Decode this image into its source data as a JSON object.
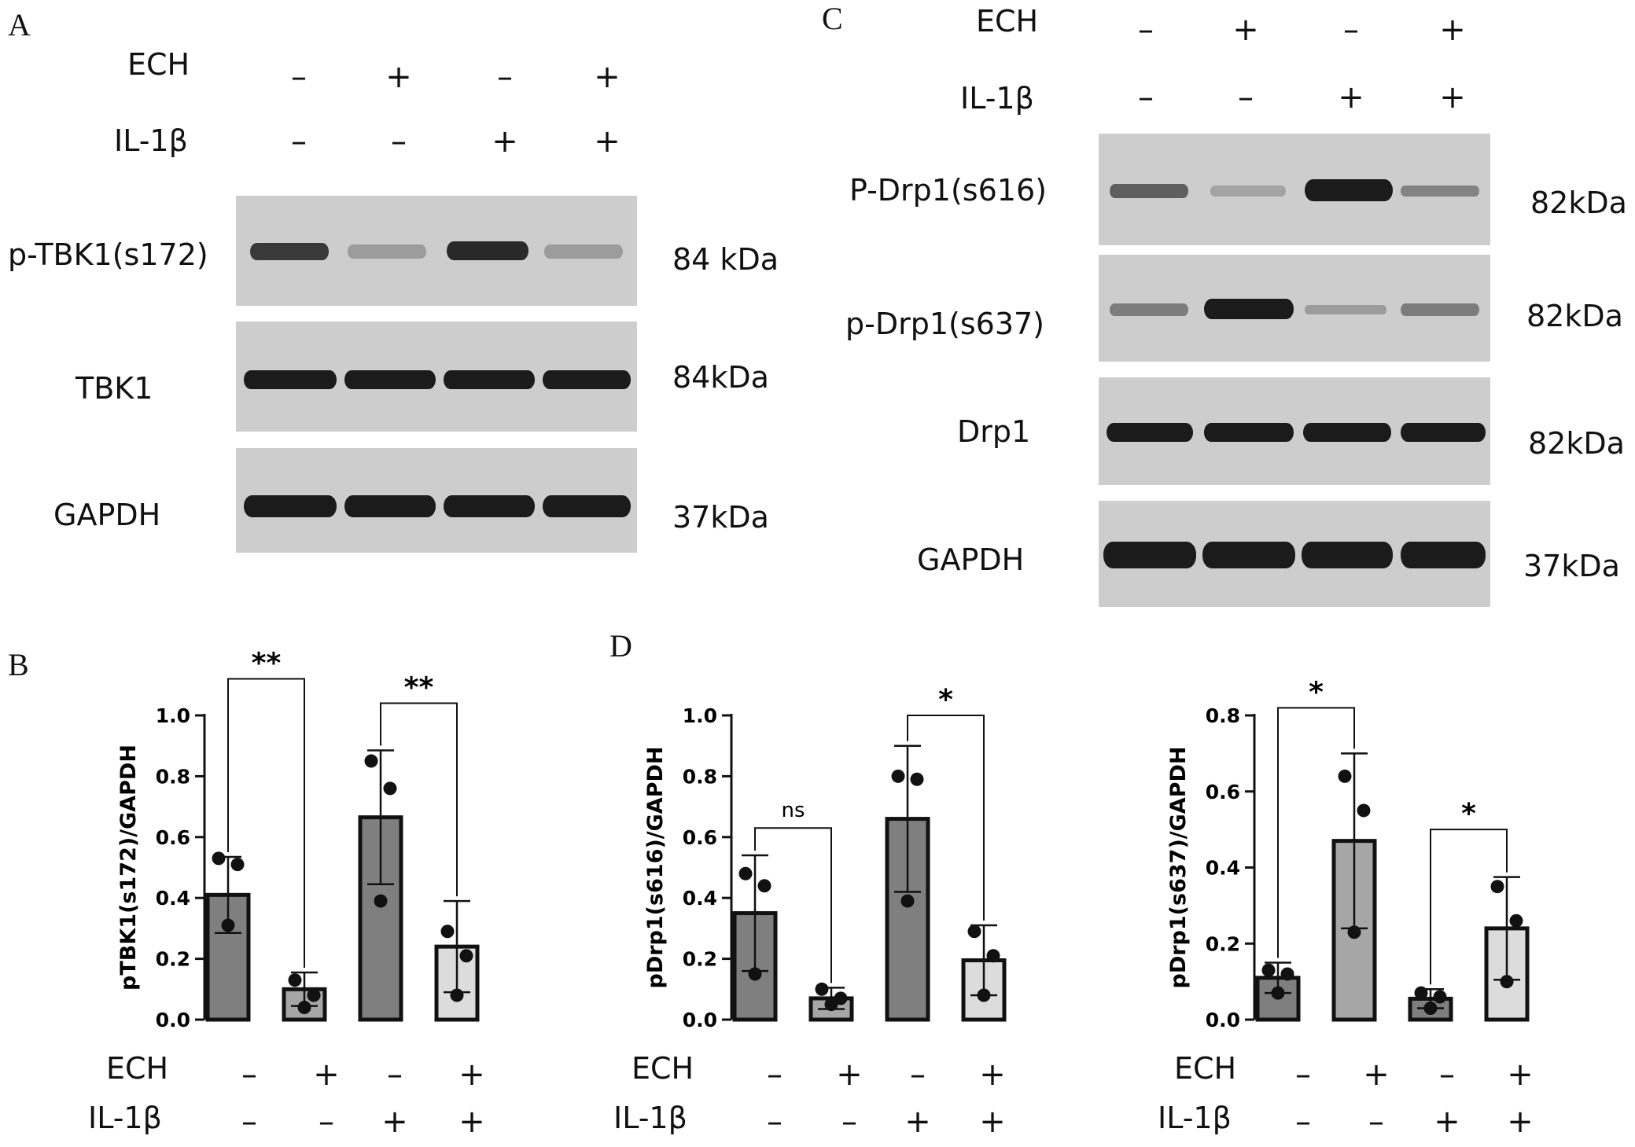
{
  "panels": {
    "A": "A",
    "B": "B",
    "C": "C",
    "D": "D"
  },
  "treatments": {
    "ech_label": "ECH",
    "il_label": "IL-1β",
    "ech": [
      "–",
      "+",
      "–",
      "+"
    ],
    "il": [
      "–",
      "–",
      "+",
      "+"
    ]
  },
  "blot_A": {
    "rows": [
      {
        "name": "p-TBK1(s172)",
        "kda": "84 kDa",
        "intensity": [
          0.8,
          0.15,
          0.9,
          0.15
        ]
      },
      {
        "name": "TBK1",
        "kda": "84kDa",
        "intensity": [
          1,
          1,
          1,
          1
        ]
      },
      {
        "name": "GAPDH",
        "kda": "37kDa",
        "intensity": [
          1,
          1,
          1,
          1
        ]
      }
    ]
  },
  "blot_C": {
    "rows": [
      {
        "name": "P-Drp1(s616)",
        "kda": "82kDa",
        "intensity": [
          0.55,
          0.1,
          1,
          0.3
        ]
      },
      {
        "name": "p-Drp1(s637)",
        "kda": "82kDa",
        "intensity": [
          0.35,
          1,
          0.15,
          0.35
        ]
      },
      {
        "name": "Drp1",
        "kda": "82kDa",
        "intensity": [
          1,
          1,
          1,
          1
        ]
      },
      {
        "name": "GAPDH",
        "kda": "37kDa",
        "intensity": [
          1,
          1,
          1,
          1
        ]
      }
    ]
  },
  "chart_data": [
    {
      "type": "bar",
      "id": "B",
      "ylabel": "pTBK1(s172)/GAPDH",
      "ylim": [
        0,
        1.0
      ],
      "yticks": [
        "0.0",
        "0.2",
        "0.4",
        "0.6",
        "0.8",
        "1.0"
      ],
      "values": [
        0.41,
        0.1,
        0.665,
        0.24
      ],
      "errors": [
        0.125,
        0.055,
        0.22,
        0.15
      ],
      "points": [
        [
          0.53,
          0.51,
          0.31
        ],
        [
          0.13,
          0.08,
          0.04
        ],
        [
          0.85,
          0.76,
          0.39
        ],
        [
          0.29,
          0.21,
          0.08
        ]
      ],
      "colors": [
        "#7f7f7f",
        "#a6a6a6",
        "#7f7f7f",
        "#dcdcdc"
      ],
      "comparisons": [
        {
          "from": 0,
          "to": 1,
          "label": "**",
          "level": 1.12
        },
        {
          "from": 2,
          "to": 3,
          "label": "**",
          "level": 1.04
        }
      ]
    },
    {
      "type": "bar",
      "id": "D1",
      "ylabel": "pDrp1(s616)/GAPDH",
      "ylim": [
        0,
        1.0
      ],
      "yticks": [
        "0.0",
        "0.2",
        "0.4",
        "0.6",
        "0.8",
        "1.0"
      ],
      "values": [
        0.35,
        0.07,
        0.66,
        0.195
      ],
      "errors": [
        0.19,
        0.035,
        0.24,
        0.115
      ],
      "points": [
        [
          0.48,
          0.44,
          0.15
        ],
        [
          0.1,
          0.07,
          0.05
        ],
        [
          0.8,
          0.79,
          0.39
        ],
        [
          0.29,
          0.21,
          0.08
        ]
      ],
      "colors": [
        "#7f7f7f",
        "#a6a6a6",
        "#7f7f7f",
        "#dcdcdc"
      ],
      "comparisons": [
        {
          "from": 0,
          "to": 1,
          "label": "ns",
          "level": 0.63
        },
        {
          "from": 2,
          "to": 3,
          "label": "*",
          "level": 1.0
        }
      ]
    },
    {
      "type": "bar",
      "id": "D2",
      "ylabel": "pDrp1(s637)/GAPDH",
      "ylim": [
        0,
        0.8
      ],
      "yticks": [
        "0.0",
        "0.2",
        "0.4",
        "0.6",
        "0.8"
      ],
      "values": [
        0.11,
        0.47,
        0.055,
        0.24
      ],
      "errors": [
        0.04,
        0.23,
        0.025,
        0.135
      ],
      "points": [
        [
          0.13,
          0.12,
          0.07
        ],
        [
          0.64,
          0.55,
          0.23
        ],
        [
          0.07,
          0.06,
          0.03
        ],
        [
          0.35,
          0.26,
          0.1
        ]
      ],
      "colors": [
        "#7f7f7f",
        "#a6a6a6",
        "#7f7f7f",
        "#dcdcdc"
      ],
      "comparisons": [
        {
          "from": 0,
          "to": 1,
          "label": "*",
          "level": 0.82
        },
        {
          "from": 2,
          "to": 3,
          "label": "*",
          "level": 0.5
        }
      ]
    }
  ]
}
